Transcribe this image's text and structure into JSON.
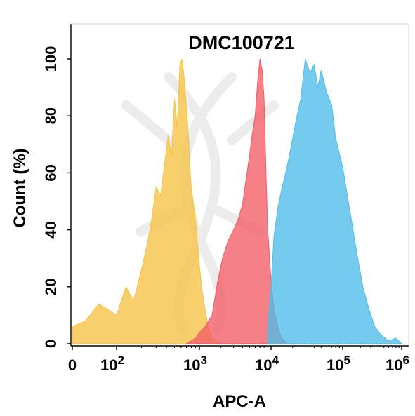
{
  "chart_data": {
    "type": "area",
    "title": "DMC100721",
    "xlabel": "APC-A",
    "ylabel": "Count  (%)",
    "x_scale": "log",
    "xlim": [
      0,
      1000000
    ],
    "ylim": [
      0,
      100
    ],
    "x_tick_labels": [
      {
        "base": "0",
        "exp": ""
      },
      {
        "base": "10",
        "exp": "2"
      },
      {
        "base": "10",
        "exp": "3"
      },
      {
        "base": "10",
        "exp": "4"
      },
      {
        "base": "10",
        "exp": "5"
      },
      {
        "base": "10",
        "exp": "6"
      }
    ],
    "y_ticks": [
      0,
      20,
      40,
      60,
      80,
      100
    ],
    "grid": false,
    "legend": "none",
    "series": [
      {
        "color": "#F5C242",
        "x": [
          0,
          30,
          60,
          100,
          130,
          160,
          200,
          230,
          260,
          300,
          340,
          380,
          420,
          460,
          500,
          540,
          580,
          620,
          660,
          700,
          740,
          780,
          820,
          870,
          920,
          970,
          1020,
          1100,
          1300,
          1500,
          2000
        ],
        "y": [
          6,
          8,
          14,
          10,
          20,
          15,
          26,
          34,
          42,
          55,
          52,
          63,
          73,
          66,
          86,
          76,
          98,
          100,
          92,
          82,
          72,
          58,
          52,
          47,
          40,
          32,
          25,
          18,
          7,
          2,
          0
        ]
      },
      {
        "color": "#F25C66",
        "x": [
          700,
          900,
          1000,
          1200,
          1500,
          1800,
          2100,
          2500,
          3000,
          3500,
          4000,
          4500,
          5000,
          5500,
          6000,
          6500,
          7000,
          7500,
          8000,
          8500,
          9000,
          10000,
          11000,
          12500,
          14000,
          17000
        ],
        "y": [
          0,
          2,
          4,
          6,
          10,
          22,
          30,
          36,
          40,
          44,
          49,
          58,
          66,
          74,
          80,
          92,
          100,
          96,
          86,
          60,
          40,
          22,
          12,
          6,
          2,
          0
        ]
      },
      {
        "color": "#4EBDE8",
        "x": [
          9000,
          10000,
          11000,
          12500,
          14000,
          16000,
          18000,
          20000,
          23000,
          26000,
          30000,
          35000,
          40000,
          45000,
          50000,
          60000,
          70000,
          80000,
          100000,
          120000,
          150000,
          180000,
          220000,
          280000,
          350000,
          450000,
          600000,
          800000,
          1000000
        ],
        "y": [
          4,
          20,
          38,
          48,
          54,
          60,
          66,
          72,
          80,
          86,
          100,
          95,
          98,
          90,
          96,
          88,
          84,
          72,
          62,
          52,
          40,
          30,
          20,
          12,
          6,
          3,
          1,
          2,
          0
        ]
      }
    ]
  }
}
